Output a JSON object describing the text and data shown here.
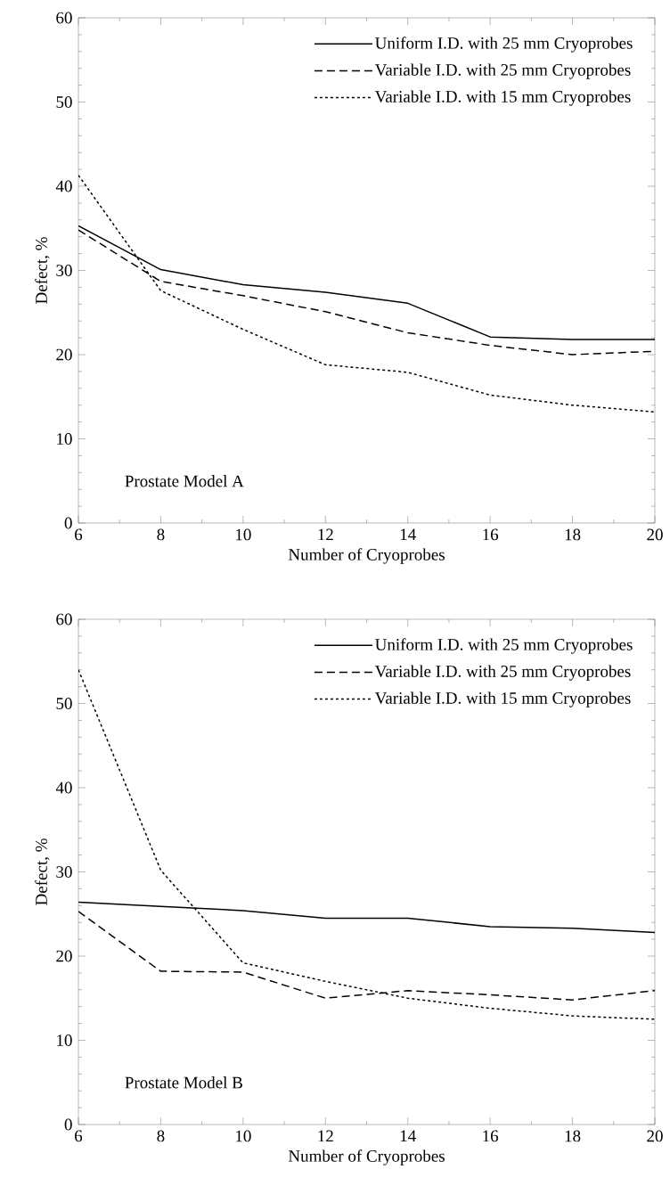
{
  "chart_data": [
    {
      "type": "line",
      "xlabel": "Number of Cryoprobes",
      "ylabel": "Defect, %",
      "x": [
        6,
        8,
        10,
        12,
        14,
        16,
        18,
        20
      ],
      "xlim": [
        6,
        20
      ],
      "ylim": [
        0,
        60
      ],
      "xticks": [
        6,
        8,
        10,
        12,
        14,
        16,
        18,
        20
      ],
      "yticks": [
        0,
        10,
        20,
        30,
        40,
        50,
        60
      ],
      "legend": "top right",
      "annotations": [
        "Prostate Model A"
      ],
      "series": [
        {
          "name": "Uniform I.D. with 25 mm Cryoprobes",
          "color": "#000000",
          "line_style": "solid",
          "values": [
            35.3,
            30.1,
            28.3,
            27.4,
            26.1,
            22.1,
            21.8,
            21.8
          ]
        },
        {
          "name": "Variable I.D. with 25 mm Cryoprobes",
          "color": "#000000",
          "line_style": "dashed",
          "values": [
            34.8,
            28.7,
            27.0,
            25.1,
            22.6,
            21.1,
            20.0,
            20.4
          ]
        },
        {
          "name": "Variable I.D. with 15 mm Cryoprobes",
          "color": "#000000",
          "line_style": "dotted",
          "values": [
            41.3,
            27.6,
            23.0,
            18.8,
            17.9,
            15.2,
            14.0,
            13.2
          ]
        }
      ]
    },
    {
      "type": "line",
      "xlabel": "Number of Cryoprobes",
      "ylabel": "Defect, %",
      "x": [
        6,
        8,
        10,
        12,
        14,
        16,
        18,
        20
      ],
      "xlim": [
        6,
        20
      ],
      "ylim": [
        0,
        60
      ],
      "xticks": [
        6,
        8,
        10,
        12,
        14,
        16,
        18,
        20
      ],
      "yticks": [
        0,
        10,
        20,
        30,
        40,
        50,
        60
      ],
      "legend": "top right",
      "annotations": [
        "Prostate Model B"
      ],
      "series": [
        {
          "name": "Uniform I.D. with 25 mm Cryoprobes",
          "color": "#000000",
          "line_style": "solid",
          "values": [
            26.4,
            25.9,
            25.4,
            24.5,
            24.5,
            23.5,
            23.3,
            22.8
          ]
        },
        {
          "name": "Variable I.D. with 25 mm Cryoprobes",
          "color": "#000000",
          "line_style": "dashed",
          "values": [
            25.3,
            18.2,
            18.1,
            15.0,
            15.9,
            15.4,
            14.8,
            15.9
          ]
        },
        {
          "name": "Variable I.D. with 15 mm Cryoprobes",
          "color": "#000000",
          "line_style": "dotted",
          "values": [
            54.0,
            30.2,
            19.2,
            17.0,
            15.0,
            13.8,
            12.9,
            12.5
          ]
        }
      ]
    }
  ]
}
